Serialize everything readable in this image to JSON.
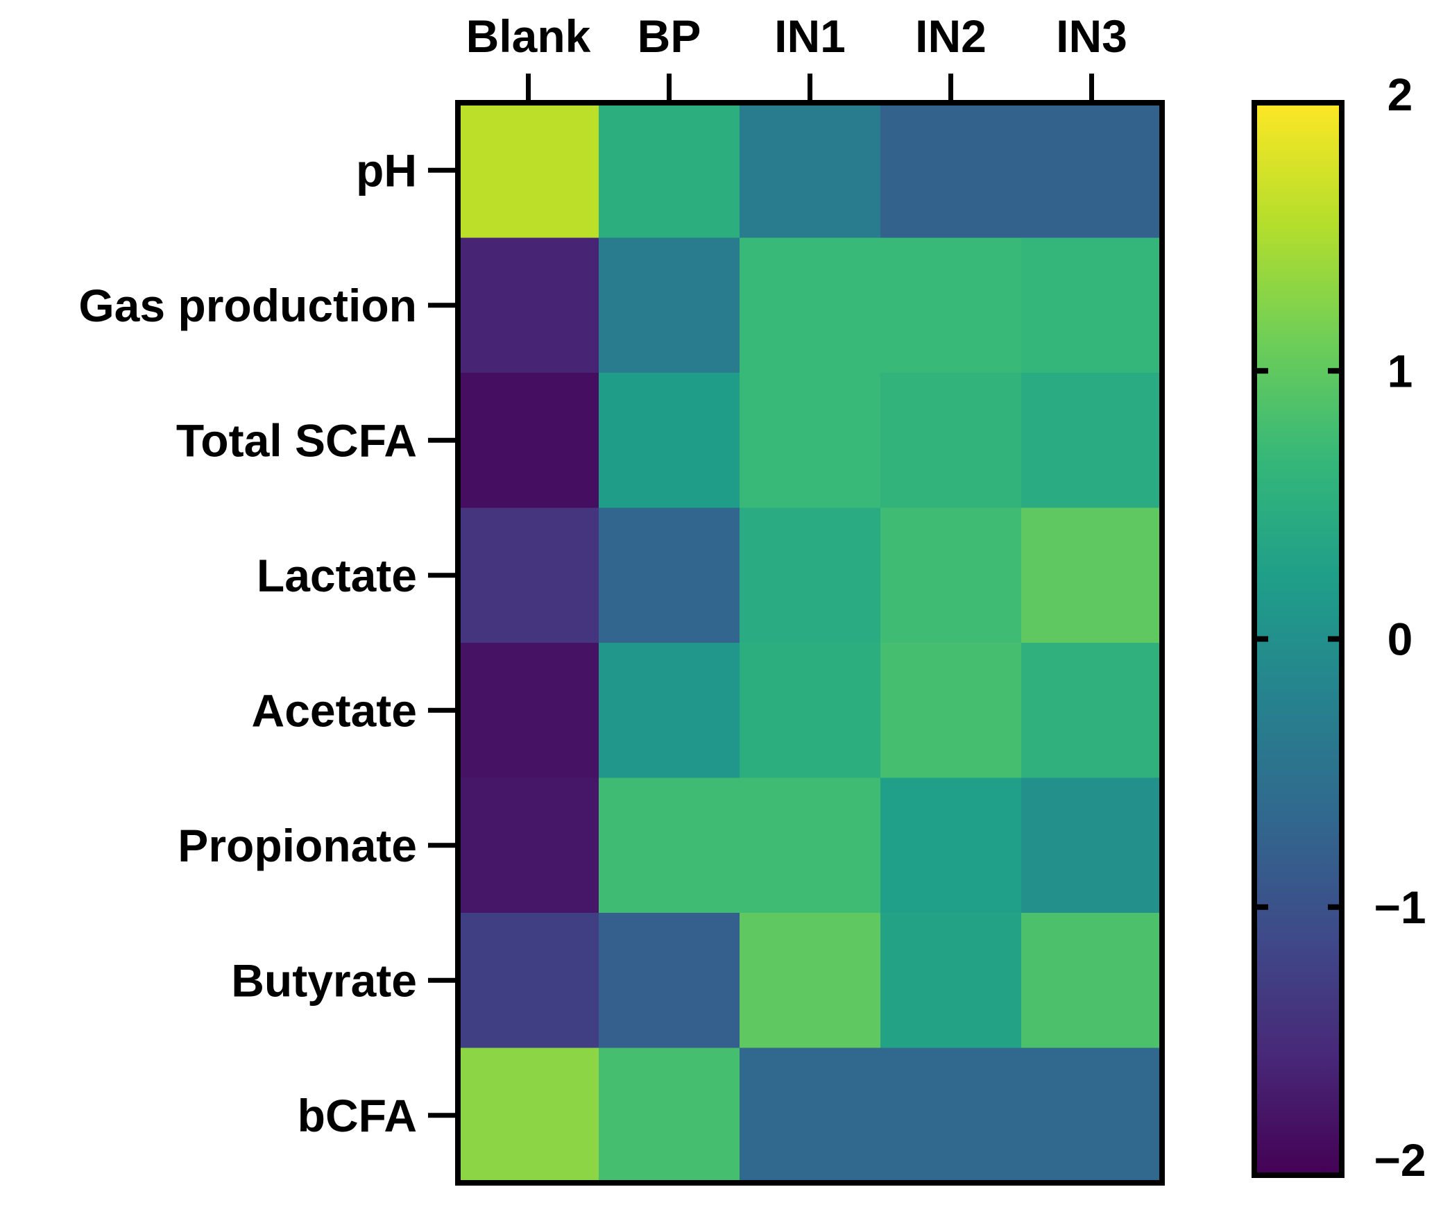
{
  "chart_data": {
    "type": "heatmap",
    "title": "",
    "columns": [
      "Blank",
      "BP",
      "IN1",
      "IN2",
      "IN3"
    ],
    "rows": [
      "pH",
      "Gas production",
      "Total SCFA",
      "Lactate",
      "Acetate",
      "Propionate",
      "Butyrate",
      "bCFA"
    ],
    "values": [
      [
        1.6,
        0.5,
        -0.35,
        -0.75,
        -0.75
      ],
      [
        -1.6,
        -0.35,
        0.7,
        0.7,
        0.65
      ],
      [
        -1.85,
        0.2,
        0.7,
        0.6,
        0.45
      ],
      [
        -1.4,
        -0.7,
        0.45,
        0.75,
        1.0
      ],
      [
        -1.8,
        0.1,
        0.5,
        0.8,
        0.55
      ],
      [
        -1.75,
        0.75,
        0.75,
        0.25,
        0.0
      ],
      [
        -1.25,
        -0.8,
        1.0,
        0.3,
        0.85
      ],
      [
        1.3,
        0.8,
        -0.65,
        -0.65,
        -0.65
      ]
    ],
    "colorbar": {
      "min": -2,
      "max": 2,
      "ticks": [
        2,
        1,
        0,
        -1,
        -2
      ],
      "tick_labels": [
        "2",
        "1",
        "0",
        "−1",
        "−2"
      ],
      "colormap": "viridis"
    },
    "colormap_stops": [
      "#440154",
      "#482878",
      "#3e4a89",
      "#31688e",
      "#26828e",
      "#1f9e89",
      "#35b779",
      "#6ece58",
      "#b5de2b",
      "#fde725"
    ]
  }
}
